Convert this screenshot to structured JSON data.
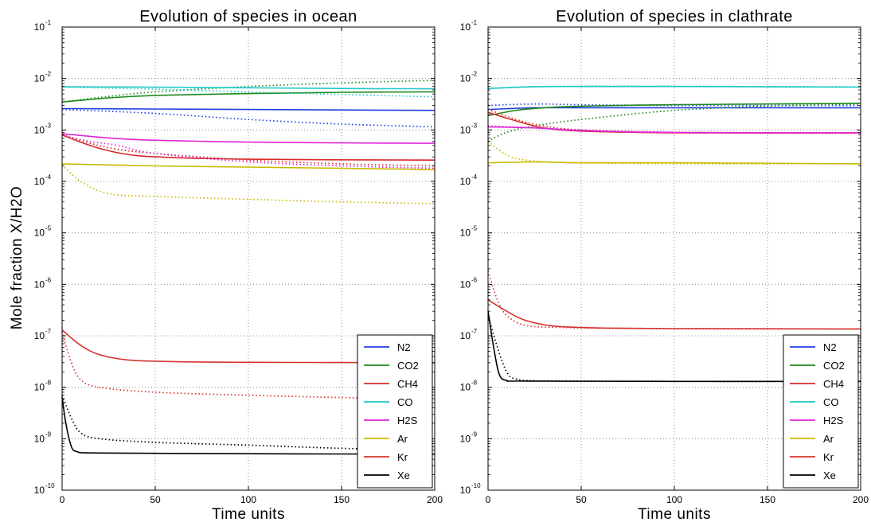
{
  "ylabel": "Mole fraction X/H2O",
  "chart_data": [
    {
      "type": "line",
      "title": "Evolution of species in ocean",
      "xlabel": "Time units",
      "xlim": [
        0,
        200
      ],
      "ylim": [
        1e-10,
        0.1
      ],
      "yscale": "log",
      "grid": true,
      "legend_position": "bottom-right",
      "x_ticks": [
        "0",
        "50",
        "100",
        "150",
        "200"
      ],
      "y_ticks": [
        {
          "base": "10",
          "exp": "-10",
          "value": 1e-10
        },
        {
          "base": "10",
          "exp": "-9",
          "value": 1e-09
        },
        {
          "base": "10",
          "exp": "-8",
          "value": 1e-08
        },
        {
          "base": "10",
          "exp": "-7",
          "value": 1e-07
        },
        {
          "base": "10",
          "exp": "-6",
          "value": 1e-06
        },
        {
          "base": "10",
          "exp": "-5",
          "value": 1e-05
        },
        {
          "base": "10",
          "exp": "-4",
          "value": 0.0001
        },
        {
          "base": "10",
          "exp": "-3",
          "value": 0.001
        },
        {
          "base": "10",
          "exp": "-2",
          "value": 0.01
        },
        {
          "base": "10",
          "exp": "-1",
          "value": 0.1
        }
      ],
      "series": [
        {
          "name": "N2",
          "color": "#1f3fdd",
          "solid": [
            [
              0,
              0.0026
            ],
            [
              50,
              0.00255
            ],
            [
              100,
              0.0025
            ],
            [
              150,
              0.00245
            ],
            [
              200,
              0.0024
            ]
          ],
          "dotted": [
            [
              0,
              0.0025
            ],
            [
              50,
              0.0021
            ],
            [
              100,
              0.0016
            ],
            [
              150,
              0.0013
            ],
            [
              200,
              0.00115
            ]
          ]
        },
        {
          "name": "CO2",
          "color": "#1e8a1e",
          "solid": [
            [
              0,
              0.0035
            ],
            [
              25,
              0.0042
            ],
            [
              50,
              0.0047
            ],
            [
              100,
              0.0051
            ],
            [
              150,
              0.0054
            ],
            [
              200,
              0.0055
            ]
          ],
          "dotted": [
            [
              0,
              0.0035
            ],
            [
              25,
              0.0045
            ],
            [
              50,
              0.0055
            ],
            [
              100,
              0.007
            ],
            [
              150,
              0.0082
            ],
            [
              200,
              0.0092
            ]
          ]
        },
        {
          "name": "CH4",
          "color": "#d62b2b",
          "solid": [
            [
              0,
              0.0008
            ],
            [
              15,
              0.0005
            ],
            [
              30,
              0.00036
            ],
            [
              50,
              0.0003
            ],
            [
              100,
              0.00027
            ],
            [
              200,
              0.00026
            ]
          ],
          "dotted": [
            [
              0,
              0.0008
            ],
            [
              15,
              0.00055
            ],
            [
              30,
              0.00042
            ],
            [
              50,
              0.00035
            ],
            [
              100,
              0.00026
            ],
            [
              150,
              0.00022
            ],
            [
              200,
              0.0002
            ]
          ]
        },
        {
          "name": "CO",
          "color": "#1fc8c8",
          "solid": [
            [
              0,
              0.0069
            ],
            [
              50,
              0.0068
            ],
            [
              100,
              0.0066
            ],
            [
              150,
              0.0064
            ],
            [
              200,
              0.0063
            ]
          ],
          "dotted": [
            [
              0,
              0.0068
            ],
            [
              50,
              0.0062
            ],
            [
              100,
              0.0055
            ],
            [
              150,
              0.0049
            ],
            [
              200,
              0.0044
            ]
          ]
        },
        {
          "name": "H2S",
          "color": "#e025d4",
          "solid": [
            [
              0,
              0.00085
            ],
            [
              25,
              0.0007
            ],
            [
              50,
              0.00063
            ],
            [
              100,
              0.00058
            ],
            [
              150,
              0.00056
            ],
            [
              200,
              0.00055
            ]
          ],
          "dotted": [
            [
              0,
              0.0008
            ],
            [
              15,
              0.0006
            ],
            [
              30,
              0.0005
            ],
            [
              50,
              0.00035
            ],
            [
              100,
              0.00024
            ],
            [
              150,
              0.0002
            ],
            [
              200,
              0.00018
            ]
          ]
        },
        {
          "name": "Ar",
          "color": "#c8b900",
          "solid": [
            [
              0,
              0.00022
            ],
            [
              50,
              0.0002
            ],
            [
              100,
              0.00019
            ],
            [
              150,
              0.00018
            ],
            [
              200,
              0.00017
            ]
          ],
          "dotted": [
            [
              0,
              0.00021
            ],
            [
              10,
              0.0001
            ],
            [
              25,
              5.8e-05
            ],
            [
              50,
              5.1e-05
            ],
            [
              100,
              4.5e-05
            ],
            [
              150,
              4e-05
            ],
            [
              200,
              3.7e-05
            ]
          ]
        },
        {
          "name": "Kr",
          "color": "#d6332e",
          "solid": [
            [
              0,
              1.3e-07
            ],
            [
              10,
              6.5e-08
            ],
            [
              20,
              4.3e-08
            ],
            [
              35,
              3.4e-08
            ],
            [
              60,
              3.15e-08
            ],
            [
              100,
              3.05e-08
            ],
            [
              200,
              3e-08
            ]
          ],
          "dotted": [
            [
              0,
              1.2e-07
            ],
            [
              5,
              3e-08
            ],
            [
              10,
              1.4e-08
            ],
            [
              20,
              1e-08
            ],
            [
              50,
              8e-09
            ],
            [
              100,
              7e-09
            ],
            [
              150,
              6.3e-09
            ],
            [
              200,
              5.8e-09
            ]
          ]
        },
        {
          "name": "Xe",
          "color": "#000000",
          "solid": [
            [
              0,
              6.5e-09
            ],
            [
              2,
              2e-09
            ],
            [
              5,
              7e-10
            ],
            [
              8,
              5.6e-10
            ],
            [
              15,
              5.3e-10
            ],
            [
              50,
              5.2e-10
            ],
            [
              100,
              5.1e-10
            ],
            [
              200,
              5e-10
            ]
          ],
          "dotted": [
            [
              0,
              7e-09
            ],
            [
              5,
              2.5e-09
            ],
            [
              10,
              1.3e-09
            ],
            [
              20,
              1e-09
            ],
            [
              50,
              8.5e-10
            ],
            [
              100,
              7.5e-10
            ],
            [
              150,
              6.5e-10
            ],
            [
              200,
              6e-10
            ]
          ]
        }
      ]
    },
    {
      "type": "line",
      "title": "Evolution of species in clathrate",
      "xlabel": "Time units",
      "xlim": [
        0,
        200
      ],
      "ylim": [
        1e-10,
        0.1
      ],
      "yscale": "log",
      "grid": true,
      "legend_position": "bottom-right",
      "x_ticks": [
        "0",
        "50",
        "100",
        "150",
        "200"
      ],
      "y_ticks": [
        {
          "base": "10",
          "exp": "-10",
          "value": 1e-10
        },
        {
          "base": "10",
          "exp": "-9",
          "value": 1e-09
        },
        {
          "base": "10",
          "exp": "-8",
          "value": 1e-08
        },
        {
          "base": "10",
          "exp": "-7",
          "value": 1e-07
        },
        {
          "base": "10",
          "exp": "-6",
          "value": 1e-06
        },
        {
          "base": "10",
          "exp": "-5",
          "value": 1e-05
        },
        {
          "base": "10",
          "exp": "-4",
          "value": 0.0001
        },
        {
          "base": "10",
          "exp": "-3",
          "value": 0.001
        },
        {
          "base": "10",
          "exp": "-2",
          "value": 0.01
        },
        {
          "base": "10",
          "exp": "-1",
          "value": 0.1
        }
      ],
      "series": [
        {
          "name": "N2",
          "color": "#1f3fdd",
          "solid": [
            [
              0,
              0.0025
            ],
            [
              25,
              0.0027
            ],
            [
              50,
              0.0027
            ],
            [
              100,
              0.0027
            ],
            [
              200,
              0.0027
            ]
          ],
          "dotted": [
            [
              0,
              0.003
            ],
            [
              25,
              0.0032
            ],
            [
              50,
              0.0031
            ],
            [
              100,
              0.003
            ],
            [
              200,
              0.003
            ]
          ]
        },
        {
          "name": "CO2",
          "color": "#1e8a1e",
          "solid": [
            [
              0,
              0.0019
            ],
            [
              15,
              0.0024
            ],
            [
              30,
              0.0027
            ],
            [
              50,
              0.0029
            ],
            [
              100,
              0.0031
            ],
            [
              150,
              0.0032
            ],
            [
              200,
              0.0033
            ]
          ],
          "dotted": [
            [
              0,
              0.0006
            ],
            [
              10,
              0.0009
            ],
            [
              25,
              0.0012
            ],
            [
              50,
              0.0016
            ],
            [
              100,
              0.0024
            ],
            [
              150,
              0.0029
            ],
            [
              200,
              0.0032
            ]
          ]
        },
        {
          "name": "CH4",
          "color": "#d62b2b",
          "solid": [
            [
              0,
              0.0022
            ],
            [
              15,
              0.0015
            ],
            [
              30,
              0.0011
            ],
            [
              50,
              0.00095
            ],
            [
              100,
              0.00088
            ],
            [
              200,
              0.00087
            ]
          ],
          "dotted": [
            [
              0,
              0.0025
            ],
            [
              15,
              0.0016
            ],
            [
              30,
              0.0012
            ],
            [
              50,
              0.001
            ],
            [
              100,
              0.0009
            ],
            [
              200,
              0.00088
            ]
          ]
        },
        {
          "name": "CO",
          "color": "#1fc8c8",
          "solid": [
            [
              0,
              0.0064
            ],
            [
              25,
              0.0069
            ],
            [
              50,
              0.007
            ],
            [
              100,
              0.007
            ],
            [
              200,
              0.0068
            ]
          ],
          "dotted": [
            [
              0,
              0.0065
            ],
            [
              25,
              0.007
            ],
            [
              50,
              0.0071
            ],
            [
              100,
              0.0071
            ],
            [
              200,
              0.0069
            ]
          ]
        },
        {
          "name": "H2S",
          "color": "#e025d4",
          "solid": [
            [
              0,
              0.00115
            ],
            [
              25,
              0.0011
            ],
            [
              50,
              0.00097
            ],
            [
              100,
              0.00089
            ],
            [
              200,
              0.00088
            ]
          ],
          "dotted": [
            [
              0,
              0.0012
            ],
            [
              25,
              0.0011
            ],
            [
              50,
              0.001
            ],
            [
              100,
              0.0009
            ],
            [
              200,
              0.00088
            ]
          ]
        },
        {
          "name": "Ar",
          "color": "#c8b900",
          "solid": [
            [
              0,
              0.00023
            ],
            [
              25,
              0.00024
            ],
            [
              50,
              0.00023
            ],
            [
              100,
              0.00023
            ],
            [
              200,
              0.00022
            ]
          ],
          "dotted": [
            [
              0,
              0.0006
            ],
            [
              8,
              0.00036
            ],
            [
              15,
              0.00028
            ],
            [
              30,
              0.00024
            ],
            [
              50,
              0.00023
            ],
            [
              100,
              0.00022
            ],
            [
              200,
              0.00022
            ]
          ]
        },
        {
          "name": "Kr",
          "color": "#d6332e",
          "solid": [
            [
              0,
              5e-07
            ],
            [
              10,
              3e-07
            ],
            [
              20,
              2e-07
            ],
            [
              35,
              1.55e-07
            ],
            [
              60,
              1.42e-07
            ],
            [
              100,
              1.38e-07
            ],
            [
              200,
              1.36e-07
            ]
          ],
          "dotted": [
            [
              0,
              1.8e-06
            ],
            [
              5,
              5e-07
            ],
            [
              10,
              2.5e-07
            ],
            [
              20,
              1.6e-07
            ],
            [
              40,
              1.45e-07
            ],
            [
              100,
              1.38e-07
            ],
            [
              200,
              1.36e-07
            ]
          ]
        },
        {
          "name": "Xe",
          "color": "#000000",
          "solid": [
            [
              0,
              3e-07
            ],
            [
              3,
              6e-08
            ],
            [
              6,
              1.8e-08
            ],
            [
              10,
              1.35e-08
            ],
            [
              20,
              1.32e-08
            ],
            [
              100,
              1.3e-08
            ],
            [
              200,
              1.3e-08
            ]
          ],
          "dotted": [
            [
              0,
              2.5e-07
            ],
            [
              5,
              6e-08
            ],
            [
              10,
              2e-08
            ],
            [
              15,
              1.45e-08
            ],
            [
              30,
              1.33e-08
            ],
            [
              100,
              1.3e-08
            ],
            [
              200,
              1.3e-08
            ]
          ]
        }
      ]
    }
  ]
}
